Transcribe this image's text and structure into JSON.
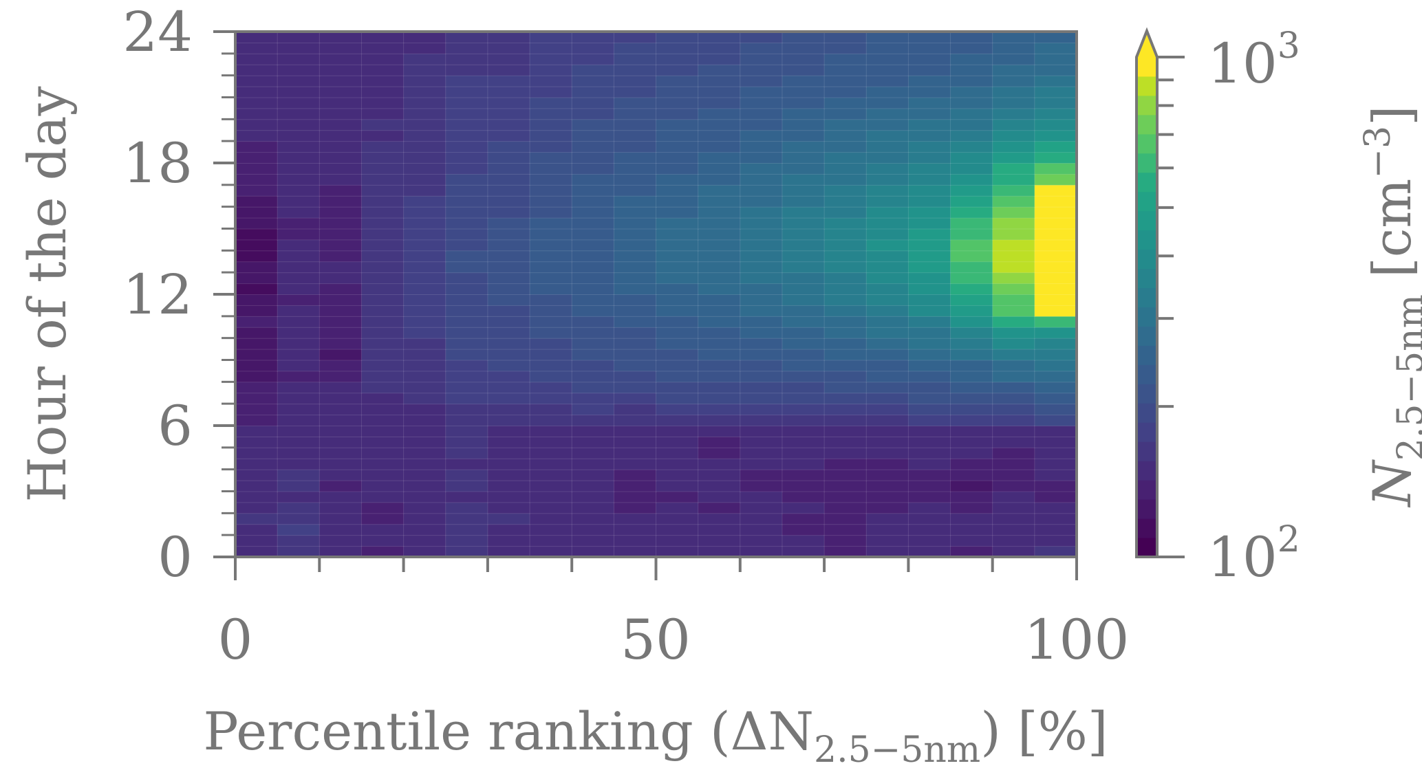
{
  "chart_data": {
    "type": "heatmap",
    "xlabel": {
      "main": "Percentile ranking (ΔN",
      "sub": "2.5−5nm",
      "tail": ") [%]"
    },
    "ylabel": "Hour of the day",
    "x_edges_step": 5,
    "xlim": [
      0,
      100
    ],
    "ylim": [
      0,
      24
    ],
    "y_bin_hours": 0.5,
    "x_ticks": [
      "0",
      "50",
      "100"
    ],
    "x_tick_values": [
      0,
      50,
      100
    ],
    "y_ticks": [
      "0",
      "6",
      "12",
      "18",
      "24"
    ],
    "y_tick_values": [
      0,
      6,
      12,
      18,
      24
    ],
    "colorbar": {
      "label_main": "N",
      "label_sub": "2.5−5nm",
      "label_unit": " [cm",
      "label_exp": "−3",
      "label_close": "]",
      "scale": "log",
      "range": [
        100,
        1000
      ],
      "extend": "max",
      "colormap": "viridis",
      "tick_top": {
        "base": "10",
        "exp": "3"
      },
      "tick_bottom": {
        "base": "10",
        "exp": "2"
      }
    },
    "values_cm3_rows_from_hour0": [
      [
        150,
        165,
        150,
        140,
        150,
        160,
        155,
        150,
        150,
        145,
        150,
        155,
        150,
        145,
        135,
        150,
        150,
        140,
        145,
        160
      ],
      [
        150,
        170,
        155,
        145,
        150,
        158,
        150,
        152,
        148,
        150,
        150,
        150,
        150,
        145,
        140,
        150,
        150,
        145,
        150,
        155
      ],
      [
        155,
        175,
        150,
        150,
        148,
        160,
        152,
        150,
        152,
        148,
        152,
        150,
        148,
        142,
        140,
        148,
        152,
        150,
        150,
        150
      ],
      [
        160,
        165,
        145,
        135,
        150,
        162,
        158,
        150,
        150,
        145,
        150,
        150,
        145,
        140,
        138,
        146,
        150,
        145,
        150,
        148
      ],
      [
        155,
        160,
        150,
        140,
        152,
        158,
        150,
        148,
        150,
        140,
        148,
        140,
        150,
        145,
        136,
        140,
        145,
        142,
        150,
        150
      ],
      [
        148,
        155,
        145,
        145,
        150,
        155,
        150,
        150,
        145,
        135,
        142,
        145,
        148,
        140,
        140,
        138,
        140,
        135,
        145,
        140
      ],
      [
        150,
        160,
        140,
        150,
        155,
        160,
        148,
        145,
        150,
        140,
        145,
        150,
        140,
        138,
        138,
        135,
        140,
        128,
        135,
        138
      ],
      [
        152,
        158,
        145,
        152,
        150,
        158,
        150,
        150,
        148,
        142,
        148,
        148,
        142,
        140,
        140,
        140,
        142,
        135,
        132,
        145
      ],
      [
        150,
        155,
        148,
        150,
        148,
        155,
        152,
        152,
        150,
        145,
        150,
        150,
        145,
        145,
        142,
        142,
        145,
        140,
        138,
        148
      ],
      [
        148,
        150,
        150,
        148,
        150,
        160,
        155,
        150,
        150,
        145,
        148,
        135,
        150,
        148,
        145,
        150,
        150,
        145,
        140,
        150
      ],
      [
        150,
        152,
        148,
        150,
        145,
        162,
        150,
        148,
        152,
        150,
        150,
        140,
        150,
        150,
        148,
        150,
        150,
        150,
        145,
        152
      ],
      [
        145,
        150,
        145,
        148,
        148,
        160,
        152,
        150,
        150,
        150,
        145,
        148,
        150,
        150,
        150,
        148,
        150,
        150,
        150,
        155
      ],
      [
        142,
        148,
        150,
        155,
        150,
        165,
        160,
        165,
        170,
        160,
        165,
        170,
        168,
        165,
        170,
        170,
        175,
        175,
        185,
        195
      ],
      [
        140,
        150,
        150,
        150,
        155,
        170,
        165,
        170,
        175,
        170,
        178,
        180,
        175,
        175,
        180,
        185,
        190,
        190,
        200,
        205
      ],
      [
        138,
        150,
        148,
        155,
        160,
        175,
        172,
        178,
        182,
        185,
        190,
        195,
        190,
        190,
        195,
        200,
        205,
        210,
        220,
        230
      ],
      [
        135,
        145,
        145,
        160,
        158,
        178,
        178,
        185,
        188,
        190,
        198,
        200,
        198,
        200,
        205,
        210,
        215,
        225,
        240,
        250
      ],
      [
        130,
        140,
        135,
        162,
        165,
        182,
        185,
        190,
        195,
        200,
        208,
        210,
        210,
        215,
        220,
        228,
        235,
        245,
        265,
        280
      ],
      [
        128,
        145,
        138,
        165,
        168,
        185,
        188,
        195,
        200,
        205,
        212,
        215,
        218,
        222,
        228,
        238,
        248,
        260,
        285,
        300
      ],
      [
        125,
        148,
        130,
        165,
        170,
        188,
        190,
        198,
        205,
        210,
        218,
        222,
        228,
        235,
        245,
        255,
        268,
        290,
        320,
        330
      ],
      [
        122,
        150,
        140,
        168,
        170,
        190,
        192,
        200,
        210,
        215,
        225,
        230,
        238,
        248,
        258,
        270,
        290,
        320,
        380,
        360
      ],
      [
        130,
        148,
        135,
        165,
        172,
        192,
        195,
        205,
        215,
        220,
        232,
        240,
        248,
        260,
        272,
        290,
        315,
        360,
        450,
        430
      ],
      [
        132,
        150,
        140,
        165,
        175,
        195,
        198,
        210,
        220,
        228,
        240,
        248,
        258,
        272,
        288,
        310,
        345,
        420,
        560,
        640
      ],
      [
        125,
        145,
        138,
        165,
        175,
        198,
        200,
        215,
        225,
        235,
        248,
        255,
        268,
        285,
        305,
        330,
        380,
        470,
        650,
        1100
      ],
      [
        120,
        142,
        140,
        168,
        178,
        200,
        205,
        218,
        230,
        240,
        255,
        262,
        278,
        295,
        318,
        350,
        410,
        520,
        700,
        1100
      ],
      [
        118,
        145,
        142,
        170,
        180,
        200,
        208,
        222,
        235,
        245,
        262,
        270,
        285,
        305,
        330,
        370,
        430,
        560,
        760,
        1100
      ],
      [
        120,
        148,
        145,
        168,
        182,
        202,
        210,
        225,
        238,
        250,
        268,
        275,
        292,
        312,
        342,
        385,
        450,
        600,
        800,
        1100
      ],
      [
        122,
        150,
        145,
        170,
        182,
        205,
        212,
        228,
        240,
        255,
        272,
        280,
        298,
        320,
        352,
        400,
        470,
        640,
        850,
        1100
      ],
      [
        118,
        148,
        142,
        170,
        180,
        205,
        212,
        230,
        242,
        258,
        275,
        282,
        300,
        325,
        358,
        410,
        480,
        660,
        880,
        1100
      ],
      [
        115,
        145,
        140,
        168,
        180,
        203,
        210,
        228,
        240,
        258,
        275,
        282,
        302,
        328,
        362,
        415,
        470,
        650,
        860,
        1100
      ],
      [
        118,
        142,
        138,
        165,
        178,
        200,
        208,
        225,
        238,
        255,
        272,
        280,
        300,
        325,
        360,
        410,
        455,
        620,
        820,
        1100
      ],
      [
        120,
        140,
        140,
        165,
        176,
        198,
        205,
        222,
        235,
        250,
        268,
        278,
        298,
        322,
        352,
        400,
        440,
        590,
        780,
        1100
      ],
      [
        125,
        145,
        142,
        162,
        175,
        195,
        202,
        220,
        232,
        248,
        262,
        275,
        292,
        318,
        345,
        385,
        420,
        560,
        740,
        1100
      ],
      [
        128,
        148,
        140,
        160,
        172,
        192,
        200,
        218,
        230,
        245,
        258,
        270,
        288,
        310,
        335,
        370,
        400,
        520,
        690,
        1100
      ],
      [
        132,
        150,
        142,
        158,
        170,
        190,
        198,
        215,
        228,
        240,
        252,
        265,
        282,
        302,
        325,
        355,
        385,
        480,
        640,
        1100
      ],
      [
        135,
        150,
        145,
        160,
        170,
        188,
        195,
        212,
        225,
        235,
        248,
        260,
        275,
        295,
        315,
        340,
        365,
        440,
        580,
        720
      ],
      [
        138,
        148,
        148,
        158,
        168,
        185,
        192,
        208,
        220,
        230,
        242,
        255,
        270,
        288,
        305,
        328,
        350,
        410,
        540,
        650
      ],
      [
        140,
        145,
        150,
        160,
        168,
        182,
        190,
        205,
        215,
        225,
        238,
        248,
        262,
        278,
        295,
        315,
        335,
        380,
        480,
        560
      ],
      [
        142,
        148,
        150,
        158,
        165,
        180,
        188,
        200,
        212,
        220,
        232,
        242,
        255,
        270,
        285,
        300,
        320,
        355,
        430,
        500
      ],
      [
        145,
        150,
        148,
        155,
        165,
        178,
        185,
        198,
        208,
        215,
        228,
        238,
        248,
        260,
        275,
        290,
        305,
        335,
        390,
        450
      ],
      [
        145,
        150,
        150,
        158,
        162,
        178,
        182,
        195,
        205,
        212,
        222,
        232,
        242,
        252,
        265,
        280,
        290,
        315,
        360,
        410
      ],
      [
        148,
        152,
        150,
        155,
        162,
        175,
        180,
        192,
        200,
        208,
        218,
        225,
        235,
        245,
        255,
        268,
        278,
        300,
        335,
        375
      ],
      [
        150,
        150,
        148,
        152,
        160,
        175,
        178,
        188,
        198,
        205,
        212,
        220,
        228,
        238,
        248,
        258,
        268,
        285,
        315,
        345
      ],
      [
        148,
        155,
        150,
        150,
        158,
        172,
        175,
        185,
        195,
        200,
        208,
        215,
        222,
        230,
        240,
        250,
        258,
        270,
        300,
        320
      ],
      [
        150,
        152,
        152,
        150,
        160,
        172,
        172,
        182,
        192,
        198,
        205,
        210,
        218,
        225,
        232,
        242,
        250,
        262,
        285,
        300
      ],
      [
        152,
        150,
        148,
        152,
        158,
        170,
        170,
        180,
        188,
        195,
        200,
        206,
        212,
        220,
        228,
        236,
        242,
        255,
        272,
        285
      ],
      [
        150,
        152,
        150,
        150,
        158,
        168,
        168,
        178,
        185,
        190,
        198,
        202,
        208,
        215,
        222,
        230,
        238,
        248,
        262,
        272
      ],
      [
        148,
        150,
        150,
        152,
        155,
        168,
        166,
        175,
        182,
        188,
        195,
        200,
        205,
        212,
        220,
        228,
        235,
        242,
        255,
        265
      ],
      [
        150,
        148,
        148,
        150,
        155,
        165,
        165,
        172,
        180,
        185,
        192,
        198,
        202,
        210,
        218,
        225,
        232,
        238,
        248,
        258
      ]
    ]
  }
}
